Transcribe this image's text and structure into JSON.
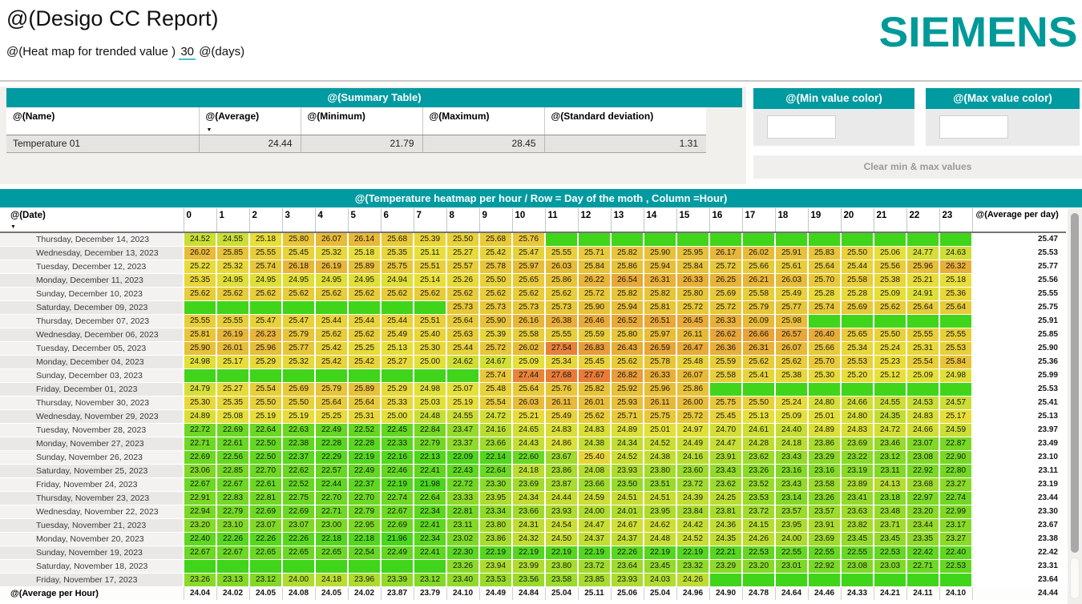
{
  "header": {
    "title": "@(Desigo CC Report)",
    "subtitle_prefix": "@(Heat map for trended value )",
    "subtitle_value": "30",
    "subtitle_suffix": "@(days)",
    "logo": "SIEMENS"
  },
  "summary": {
    "title": "@(Summary Table)",
    "columns": [
      "@(Name)",
      "@(Average)",
      "@(Minimum)",
      "@(Maximum)",
      "@(Standard deviation)"
    ],
    "sorted_column": "@(Average)",
    "row": {
      "name": "Temperature 01",
      "average": "24.44",
      "minimum": "21.79",
      "maximum": "28.45",
      "std_dev": "1.31"
    }
  },
  "color_panels": {
    "min_title": "@(Min value color)",
    "max_title": "@(Max value color)",
    "min_value": "",
    "max_value": "",
    "clear_button": "Clear min & max values"
  },
  "heatmap": {
    "title": "@(Temperature heatmap per hour / Row = Day of the moth , Column =Hour)",
    "date_header": "@(Date)",
    "hour_headers": [
      "0",
      "1",
      "2",
      "3",
      "4",
      "5",
      "6",
      "7",
      "8",
      "9",
      "10",
      "11",
      "12",
      "13",
      "14",
      "15",
      "16",
      "17",
      "18",
      "19",
      "20",
      "21",
      "22",
      "23"
    ],
    "avg_header": "@(Average per day)",
    "avg_row_label": "@(Average per Hour)",
    "scale": {
      "min": 21.79,
      "max": 28.45,
      "color_min": "#40d51b",
      "color_mid": "#e8e03a",
      "color_max": "#e85c38"
    },
    "rows": [
      {
        "date": "Thursday, December 14, 2023",
        "values": [
          24.52,
          24.55,
          25.18,
          25.8,
          26.07,
          26.14,
          25.68,
          25.39,
          25.5,
          25.68,
          25.76,
          null,
          null,
          null,
          null,
          null,
          null,
          null,
          null,
          null,
          null,
          null,
          null,
          null
        ],
        "avg": 25.47
      },
      {
        "date": "Wednesday, December 13, 2023",
        "values": [
          26.02,
          25.85,
          25.55,
          25.45,
          25.32,
          25.18,
          25.35,
          25.11,
          25.27,
          25.42,
          25.47,
          25.55,
          25.71,
          25.82,
          25.9,
          25.95,
          26.17,
          26.02,
          25.91,
          25.83,
          25.5,
          25.06,
          24.77,
          24.63
        ],
        "avg": 25.53
      },
      {
        "date": "Tuesday, December 12, 2023",
        "values": [
          25.22,
          25.32,
          25.74,
          26.18,
          26.19,
          25.89,
          25.75,
          25.51,
          25.57,
          25.78,
          25.97,
          26.03,
          25.84,
          25.86,
          25.94,
          25.84,
          25.72,
          25.66,
          25.61,
          25.64,
          25.44,
          25.56,
          25.96,
          26.32
        ],
        "avg": 25.77
      },
      {
        "date": "Monday, December 11, 2023",
        "values": [
          25.35,
          24.95,
          24.95,
          24.95,
          24.95,
          24.95,
          24.94,
          25.14,
          25.26,
          25.5,
          25.65,
          25.86,
          26.22,
          26.54,
          26.31,
          26.33,
          26.25,
          26.21,
          26.03,
          25.7,
          25.58,
          25.38,
          25.21,
          25.18
        ],
        "avg": 25.56
      },
      {
        "date": "Sunday, December 10, 2023",
        "values": [
          25.62,
          25.62,
          25.62,
          25.62,
          25.62,
          25.62,
          25.62,
          25.62,
          25.62,
          25.62,
          25.62,
          25.62,
          25.72,
          25.82,
          25.82,
          25.8,
          25.69,
          25.58,
          25.49,
          25.28,
          25.28,
          25.09,
          24.91,
          25.36
        ],
        "avg": 25.55
      },
      {
        "date": "Saturday, December 09, 2023",
        "values": [
          null,
          null,
          null,
          null,
          null,
          null,
          null,
          null,
          25.73,
          25.73,
          25.73,
          25.73,
          25.9,
          25.94,
          25.81,
          25.72,
          25.72,
          25.79,
          25.77,
          25.74,
          25.69,
          25.62,
          25.64,
          25.64
        ],
        "avg": 25.75
      },
      {
        "date": "Thursday, December 07, 2023",
        "values": [
          25.55,
          25.55,
          25.47,
          25.47,
          25.44,
          25.44,
          25.44,
          25.51,
          25.64,
          25.9,
          26.16,
          26.38,
          26.46,
          26.52,
          26.51,
          26.45,
          26.33,
          26.09,
          25.98,
          null,
          null,
          null,
          null,
          null
        ],
        "avg": 25.91
      },
      {
        "date": "Wednesday, December 06, 2023",
        "values": [
          25.81,
          26.19,
          26.23,
          25.79,
          25.62,
          25.62,
          25.49,
          25.4,
          25.63,
          25.39,
          25.58,
          25.55,
          25.59,
          25.8,
          25.97,
          26.11,
          26.62,
          26.66,
          26.57,
          26.4,
          25.65,
          25.5,
          25.55,
          25.55
        ],
        "avg": 25.85
      },
      {
        "date": "Tuesday, December 05, 2023",
        "values": [
          25.9,
          26.01,
          25.96,
          25.77,
          25.42,
          25.25,
          25.13,
          25.3,
          25.44,
          25.72,
          26.02,
          27.54,
          26.83,
          26.43,
          26.59,
          26.47,
          26.36,
          26.31,
          26.07,
          25.66,
          25.34,
          25.24,
          25.31,
          25.53
        ],
        "avg": 25.9
      },
      {
        "date": "Monday, December 04, 2023",
        "values": [
          24.98,
          25.17,
          25.29,
          25.32,
          25.42,
          25.42,
          25.27,
          25.0,
          24.62,
          24.67,
          25.09,
          25.34,
          25.45,
          25.62,
          25.78,
          25.48,
          25.59,
          25.62,
          25.62,
          25.7,
          25.53,
          25.23,
          25.54,
          25.84
        ],
        "avg": 25.36
      },
      {
        "date": "Sunday, December 03, 2023",
        "values": [
          null,
          null,
          null,
          null,
          null,
          null,
          null,
          null,
          null,
          25.74,
          27.44,
          27.68,
          27.67,
          26.82,
          26.33,
          26.07,
          25.58,
          25.41,
          25.38,
          25.3,
          25.2,
          25.12,
          25.09,
          24.98
        ],
        "avg": 25.99
      },
      {
        "date": "Friday, December 01, 2023",
        "values": [
          24.79,
          25.27,
          25.54,
          25.69,
          25.79,
          25.89,
          25.29,
          24.98,
          25.07,
          25.48,
          25.64,
          25.76,
          25.82,
          25.92,
          25.96,
          25.86,
          null,
          null,
          null,
          null,
          null,
          null,
          null,
          null
        ],
        "avg": 25.53
      },
      {
        "date": "Thursday, November 30, 2023",
        "values": [
          25.3,
          25.35,
          25.5,
          25.5,
          25.64,
          25.64,
          25.33,
          25.03,
          25.19,
          25.54,
          26.03,
          26.11,
          26.01,
          25.93,
          26.11,
          26.0,
          25.75,
          25.5,
          25.24,
          24.8,
          24.66,
          24.55,
          24.53,
          24.57
        ],
        "avg": 25.41
      },
      {
        "date": "Wednesday, November 29, 2023",
        "values": [
          24.89,
          25.08,
          25.19,
          25.19,
          25.25,
          25.31,
          25.0,
          24.48,
          24.55,
          24.72,
          25.21,
          25.49,
          25.62,
          25.71,
          25.75,
          25.72,
          25.45,
          25.13,
          25.09,
          25.01,
          24.8,
          24.35,
          24.83,
          25.17
        ],
        "avg": 25.13
      },
      {
        "date": "Tuesday, November 28, 2023",
        "values": [
          22.72,
          22.69,
          22.64,
          22.63,
          22.49,
          22.52,
          22.45,
          22.84,
          23.47,
          24.16,
          24.65,
          24.83,
          24.83,
          24.89,
          25.01,
          24.97,
          24.7,
          24.61,
          24.4,
          24.89,
          24.83,
          24.72,
          24.66,
          24.59
        ],
        "avg": 23.97
      },
      {
        "date": "Monday, November 27, 2023",
        "values": [
          22.71,
          22.61,
          22.5,
          22.38,
          22.28,
          22.28,
          22.33,
          22.79,
          23.37,
          23.66,
          24.43,
          24.86,
          24.38,
          24.34,
          24.52,
          24.49,
          24.47,
          24.28,
          24.18,
          23.86,
          23.69,
          23.46,
          23.07,
          22.87
        ],
        "avg": 23.49
      },
      {
        "date": "Sunday, November 26, 2023",
        "values": [
          22.69,
          22.56,
          22.5,
          22.37,
          22.29,
          22.19,
          22.16,
          22.13,
          22.09,
          22.14,
          22.6,
          23.67,
          25.4,
          24.52,
          24.38,
          24.16,
          23.91,
          23.62,
          23.43,
          23.29,
          23.22,
          23.12,
          23.08,
          22.9
        ],
        "avg": 23.1
      },
      {
        "date": "Saturday, November 25, 2023",
        "values": [
          23.06,
          22.85,
          22.7,
          22.62,
          22.57,
          22.49,
          22.46,
          22.41,
          22.43,
          22.64,
          24.18,
          23.86,
          24.08,
          23.93,
          23.8,
          23.6,
          23.43,
          23.26,
          23.16,
          23.16,
          23.19,
          23.11,
          22.92,
          22.8
        ],
        "avg": 23.11
      },
      {
        "date": "Friday, November 24, 2023",
        "values": [
          22.67,
          22.67,
          22.61,
          22.52,
          22.44,
          22.37,
          22.19,
          21.98,
          22.72,
          23.3,
          23.69,
          23.87,
          23.66,
          23.5,
          23.51,
          23.72,
          23.62,
          23.52,
          23.43,
          23.58,
          23.89,
          24.13,
          23.68,
          23.27
        ],
        "avg": 23.19
      },
      {
        "date": "Thursday, November 23, 2023",
        "values": [
          22.91,
          22.83,
          22.81,
          22.75,
          22.7,
          22.7,
          22.74,
          22.64,
          23.33,
          23.95,
          24.34,
          24.44,
          24.59,
          24.51,
          24.51,
          24.39,
          24.25,
          23.53,
          23.14,
          23.26,
          23.41,
          23.18,
          22.97,
          22.74
        ],
        "avg": 23.44
      },
      {
        "date": "Wednesday, November 22, 2023",
        "values": [
          22.94,
          22.79,
          22.69,
          22.69,
          22.71,
          22.79,
          22.67,
          22.34,
          22.81,
          23.34,
          23.66,
          23.93,
          24.0,
          24.01,
          23.95,
          23.84,
          23.81,
          23.72,
          23.57,
          23.57,
          23.63,
          23.48,
          23.2,
          22.99
        ],
        "avg": 23.3
      },
      {
        "date": "Tuesday, November 21, 2023",
        "values": [
          23.2,
          23.1,
          23.07,
          23.07,
          23.0,
          22.95,
          22.69,
          22.41,
          23.11,
          23.8,
          24.31,
          24.54,
          24.47,
          24.67,
          24.62,
          24.42,
          24.36,
          24.15,
          23.95,
          23.91,
          23.82,
          23.71,
          23.44,
          23.17
        ],
        "avg": 23.67
      },
      {
        "date": "Monday, November 20, 2023",
        "values": [
          22.4,
          22.26,
          22.26,
          22.26,
          22.18,
          22.18,
          21.96,
          22.34,
          23.02,
          23.86,
          24.32,
          24.5,
          24.37,
          24.37,
          24.48,
          24.52,
          24.35,
          24.26,
          24.0,
          23.69,
          23.45,
          23.45,
          23.35,
          23.27
        ],
        "avg": 23.38
      },
      {
        "date": "Sunday, November 19, 2023",
        "values": [
          22.67,
          22.67,
          22.65,
          22.65,
          22.65,
          22.54,
          22.49,
          22.41,
          22.3,
          22.19,
          22.19,
          22.19,
          22.19,
          22.26,
          22.19,
          22.19,
          22.21,
          22.53,
          22.55,
          22.55,
          22.55,
          22.53,
          22.42,
          22.4
        ],
        "avg": 22.42
      },
      {
        "date": "Saturday, November 18, 2023",
        "values": [
          null,
          null,
          null,
          null,
          null,
          null,
          null,
          null,
          23.26,
          23.94,
          23.99,
          23.8,
          23.72,
          23.64,
          23.45,
          23.32,
          23.29,
          23.2,
          23.01,
          22.92,
          23.08,
          23.03,
          22.71,
          22.53
        ],
        "avg": 23.31
      },
      {
        "date": "Friday, November 17, 2023",
        "values": [
          23.26,
          23.13,
          23.12,
          24.0,
          24.18,
          23.96,
          23.39,
          23.12,
          23.4,
          23.53,
          23.56,
          23.58,
          23.85,
          23.93,
          24.03,
          24.26,
          null,
          null,
          null,
          null,
          null,
          null,
          null,
          null
        ],
        "avg": 23.64
      }
    ],
    "avg_row": {
      "values": [
        24.04,
        24.02,
        24.05,
        24.08,
        24.05,
        24.02,
        23.87,
        23.79,
        24.1,
        24.49,
        24.84,
        25.04,
        25.11,
        25.06,
        25.04,
        24.96,
        24.9,
        24.78,
        24.64,
        24.46,
        24.33,
        24.21,
        24.11,
        24.1
      ],
      "total": 24.44
    }
  }
}
